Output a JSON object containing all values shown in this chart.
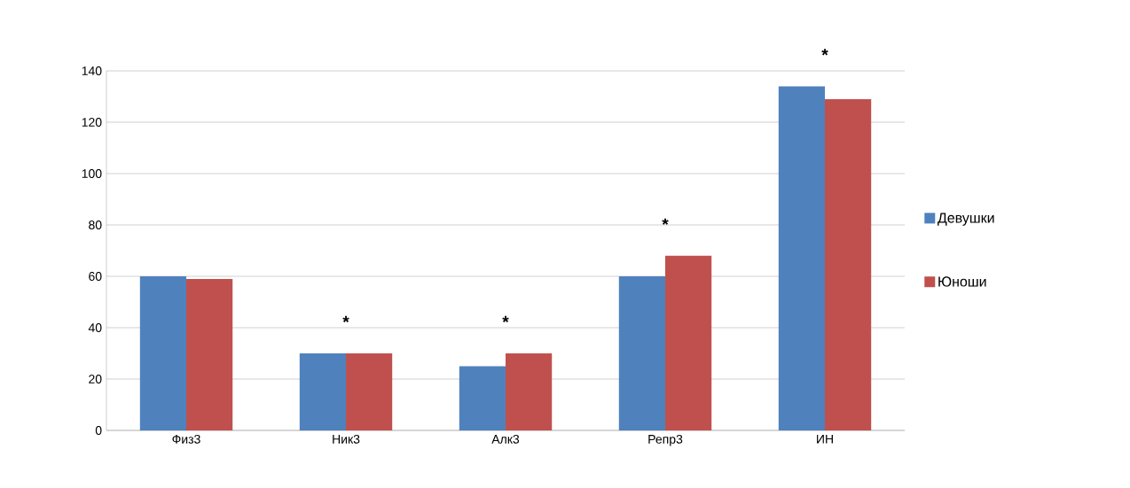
{
  "chart_data": {
    "type": "bar",
    "categories": [
      "Физ3",
      "Ник3",
      "Алк3",
      "Репр3",
      "ИН"
    ],
    "series": [
      {
        "name": "Девушки",
        "color": "#4f81bd",
        "values": [
          60,
          30,
          25,
          60,
          134
        ]
      },
      {
        "name": "Юноши",
        "color": "#c0504d",
        "values": [
          59,
          30,
          30,
          68,
          129
        ]
      }
    ],
    "ylim": [
      0,
      140
    ],
    "yticks": [
      0,
      20,
      40,
      60,
      80,
      100,
      120,
      140
    ],
    "grid": "y",
    "legend": "right",
    "annotations": [
      "*",
      "*",
      "*",
      "*"
    ]
  }
}
